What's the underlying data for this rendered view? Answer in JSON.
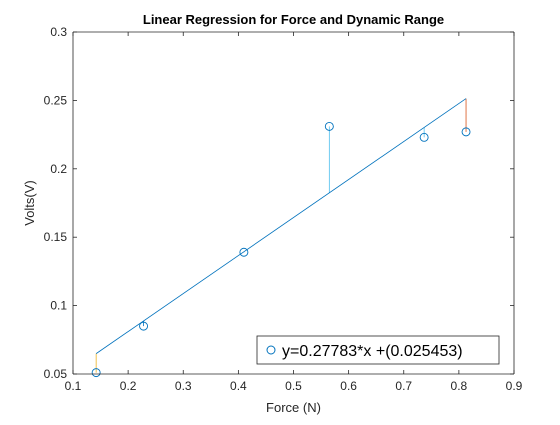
{
  "chart_data": {
    "type": "scatter",
    "title": "Linear Regression for Force and Dynamic Range",
    "xlabel": "Force (N)",
    "ylabel": "Volts(V)",
    "xlim": [
      0.1,
      0.9
    ],
    "ylim": [
      0.05,
      0.3
    ],
    "xticks": [
      0.1,
      0.2,
      0.3,
      0.4,
      0.5,
      0.6,
      0.7,
      0.8,
      0.9
    ],
    "xtick_labels": [
      "0.1",
      "0.2",
      "0.3",
      "0.4",
      "0.5",
      "0.6",
      "0.7",
      "0.8",
      "0.9"
    ],
    "yticks": [
      0.05,
      0.1,
      0.15,
      0.2,
      0.25,
      0.3
    ],
    "ytick_labels": [
      "0.05",
      "0.1",
      "0.15",
      "0.2",
      "0.25",
      "0.3"
    ],
    "grid": false,
    "legend_position": "bottom-right",
    "series": [
      {
        "name": "y=0.27783*x +(0.025453)",
        "type": "scatter",
        "marker": "open-circle",
        "color": "#0072BD",
        "x": [
          0.142,
          0.228,
          0.41,
          0.565,
          0.737,
          0.813
        ],
        "y": [
          0.051,
          0.085,
          0.139,
          0.231,
          0.223,
          0.227
        ]
      }
    ],
    "fit_line": {
      "slope": 0.27783,
      "intercept": 0.025453,
      "x_range": [
        0.142,
        0.813
      ],
      "color": "#0072BD"
    },
    "residuals": {
      "description": "vertical lines from each point to the fitted line",
      "colors": [
        "#EDB120",
        "#0072BD",
        "#0072BD",
        "#4DBEEE",
        "#4DBEEE",
        "#D95319"
      ]
    }
  }
}
